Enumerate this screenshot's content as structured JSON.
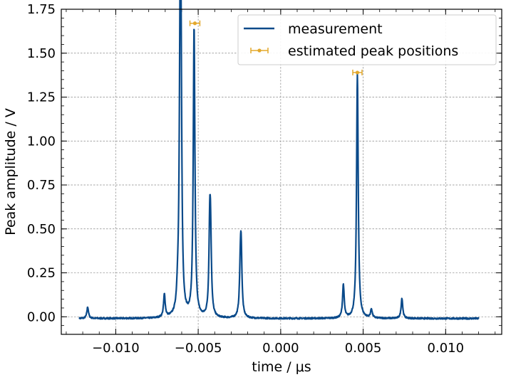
{
  "chart_data": {
    "type": "line",
    "xlabel": "time / μs",
    "ylabel": "Peak amplitude / V",
    "xlim": [
      -0.0133,
      0.0134
    ],
    "ylim": [
      -0.1,
      1.75
    ],
    "xticks": [
      -0.01,
      -0.005,
      0.0,
      0.005,
      0.01
    ],
    "xtick_labels": [
      "−0.010",
      "−0.005",
      "0.000",
      "0.005",
      "0.010"
    ],
    "yticks": [
      0.0,
      0.25,
      0.5,
      0.75,
      1.0,
      1.25,
      1.5,
      1.75
    ],
    "ytick_labels": [
      "0.00",
      "0.25",
      "0.50",
      "0.75",
      "1.00",
      "1.25",
      "1.50",
      "1.75"
    ],
    "grid": true,
    "legend_position": "top-right",
    "series": [
      {
        "name": "measurement",
        "color": "#0a4a8a",
        "x_range": [
          -0.0122,
          0.012
        ],
        "baseline": -0.01,
        "peaks": [
          {
            "x": -0.0117,
            "height": 0.055
          },
          {
            "x": -0.00705,
            "height": 0.12
          },
          {
            "x": -0.00625,
            "height": 0.065
          },
          {
            "x": -0.0061,
            "height": 1.13
          },
          {
            "x": -0.00605,
            "height": 1.34
          },
          {
            "x": -0.00525,
            "height": 1.64
          },
          {
            "x": -0.0043,
            "height": 0.44
          },
          {
            "x": -0.00425,
            "height": 0.36
          },
          {
            "x": -0.00245,
            "height": 0.18
          },
          {
            "x": -0.0024,
            "height": 0.37
          },
          {
            "x": 0.0038,
            "height": 0.18
          },
          {
            "x": 0.00465,
            "height": 1.38
          },
          {
            "x": 0.0055,
            "height": 0.04
          },
          {
            "x": 0.00735,
            "height": 0.105
          }
        ]
      },
      {
        "name": "estimated peak positions",
        "color": "#e3a82b",
        "points": [
          {
            "x": -0.0052,
            "y": 1.67,
            "xerr": 0.0003
          },
          {
            "x": 0.00465,
            "y": 1.39,
            "xerr": 0.00028
          }
        ]
      }
    ]
  }
}
